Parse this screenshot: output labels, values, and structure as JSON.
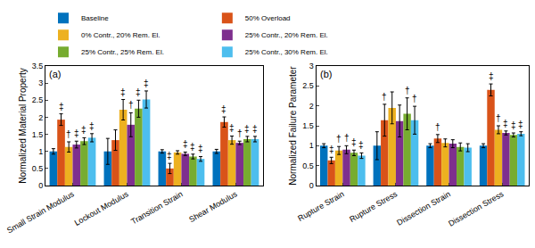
{
  "chart_data": [
    {
      "type": "bar",
      "title": "(a)",
      "y_label": "Normalized Material Property",
      "categories": [
        "Small Strain Modulus",
        "Lockout Modulus",
        "Transition Strain",
        "Shear Modulus"
      ],
      "ylim": [
        0,
        3.5
      ],
      "yticks": [
        0,
        0.5,
        1,
        1.5,
        2,
        2.5,
        3,
        3.5
      ],
      "grid": false,
      "legend": "top",
      "series": [
        {
          "name": "Baseline",
          "color": "#0072BD",
          "values": [
            1.0,
            1.0,
            1.0,
            1.0
          ],
          "errors": [
            0.08,
            0.38,
            0.05,
            0.06
          ],
          "significance": [
            null,
            null,
            null,
            null
          ]
        },
        {
          "name": "50% Overload",
          "color": "#D95319",
          "values": [
            1.93,
            1.33,
            0.5,
            1.86
          ],
          "errors": [
            0.17,
            0.3,
            0.15,
            0.15
          ],
          "significance": [
            "‡",
            null,
            "‡",
            "‡"
          ]
        },
        {
          "name": "0% Contr., 20% Rem. El.",
          "color": "#EDB120",
          "values": [
            1.13,
            2.22,
            0.97,
            1.33
          ],
          "errors": [
            0.15,
            0.3,
            0.05,
            0.12
          ],
          "significance": [
            "†",
            "‡",
            null,
            "‡"
          ]
        },
        {
          "name": "25% Contr., 20% Rem. El.",
          "color": "#7E2F8E",
          "values": [
            1.2,
            1.78,
            0.93,
            1.25
          ],
          "errors": [
            0.1,
            0.35,
            0.05,
            0.05
          ],
          "significance": [
            "‡",
            "†",
            "‡",
            "†"
          ]
        },
        {
          "name": "25% Contr., 25% Rem. El.",
          "color": "#77AC30",
          "values": [
            1.3,
            2.25,
            0.85,
            1.36
          ],
          "errors": [
            0.1,
            0.25,
            0.07,
            0.08
          ],
          "significance": [
            "‡",
            "‡",
            "‡",
            "‡"
          ]
        },
        {
          "name": "25% Contr., 30% Rem. El.",
          "color": "#4DBEEE",
          "values": [
            1.4,
            2.52,
            0.78,
            1.36
          ],
          "errors": [
            0.12,
            0.25,
            0.07,
            0.08
          ],
          "significance": [
            "‡",
            "‡",
            "‡",
            "‡"
          ]
        }
      ]
    },
    {
      "type": "bar",
      "title": "(b)",
      "y_label": "Normalized Failure Parameter",
      "categories": [
        "Rupture Strain",
        "Rupture Stress",
        "Dissection Strain",
        "Dissection Stress"
      ],
      "ylim": [
        0,
        3
      ],
      "yticks": [
        0,
        0.5,
        1,
        1.5,
        2,
        2.5,
        3
      ],
      "grid": false,
      "series": [
        {
          "name": "Baseline",
          "color": "#0072BD",
          "values": [
            1.0,
            1.0,
            1.0,
            1.0
          ],
          "errors": [
            0.05,
            0.35,
            0.05,
            0.05
          ],
          "significance": [
            null,
            null,
            null,
            null
          ]
        },
        {
          "name": "50% Overload",
          "color": "#D95319",
          "values": [
            0.63,
            1.64,
            1.18,
            2.4
          ],
          "errors": [
            0.08,
            0.4,
            0.1,
            0.15
          ],
          "significance": [
            "‡",
            "†",
            "†",
            "‡"
          ]
        },
        {
          "name": "0% Contr., 20% Rem. El.",
          "color": "#EDB120",
          "values": [
            0.88,
            1.95,
            1.07,
            1.4
          ],
          "errors": [
            0.1,
            0.4,
            0.1,
            0.1
          ],
          "significance": [
            "†",
            null,
            null,
            "†"
          ]
        },
        {
          "name": "25% Contr., 20% Rem. El.",
          "color": "#7E2F8E",
          "values": [
            0.9,
            1.62,
            1.05,
            1.32
          ],
          "errors": [
            0.1,
            0.4,
            0.1,
            0.05
          ],
          "significance": [
            "†",
            null,
            null,
            "‡"
          ]
        },
        {
          "name": "25% Contr., 25% Rem. El.",
          "color": "#77AC30",
          "values": [
            0.82,
            1.8,
            0.97,
            1.27
          ],
          "errors": [
            0.07,
            0.4,
            0.1,
            0.05
          ],
          "significance": [
            "‡",
            "†",
            null,
            "‡"
          ]
        },
        {
          "name": "25% Contr., 30% Rem. El.",
          "color": "#4DBEEE",
          "values": [
            0.75,
            1.64,
            0.95,
            1.3
          ],
          "errors": [
            0.07,
            0.35,
            0.1,
            0.05
          ],
          "significance": [
            "‡",
            "†",
            null,
            "‡"
          ]
        }
      ]
    }
  ]
}
